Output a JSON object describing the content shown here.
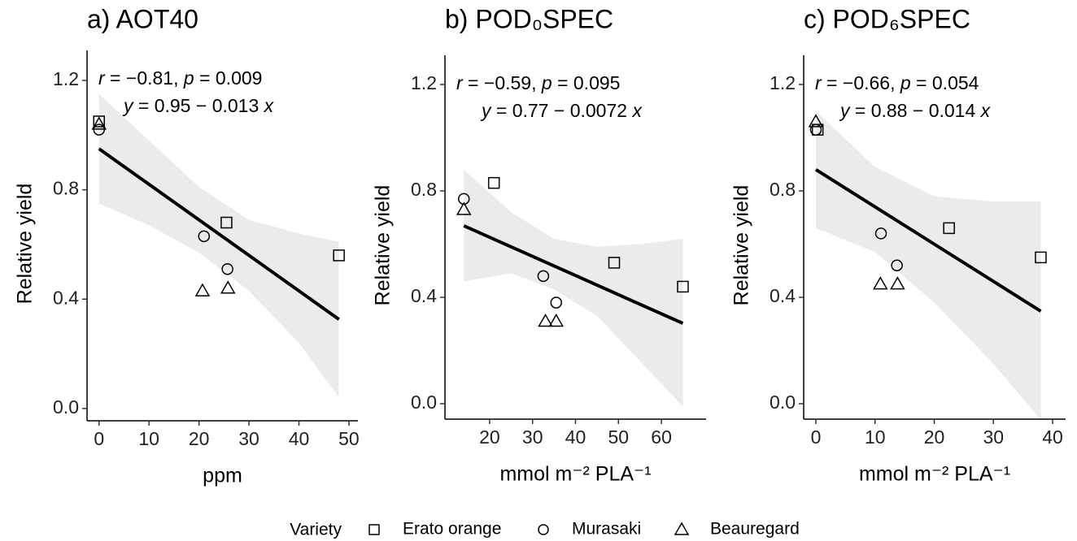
{
  "chart_data": [
    {
      "type": "scatter",
      "title": "a) AOT40",
      "xlabel": "ppm",
      "ylabel": "Relative yield",
      "annotation": [
        "r = −0.81, p = 0.009",
        "y = 0.95 − 0.013 x"
      ],
      "xlim": [
        -2.4,
        51.8
      ],
      "xticks": [
        0,
        10,
        20,
        30,
        40,
        50
      ],
      "ylim": [
        -0.045,
        1.31
      ],
      "yticks": [
        {
          "value": 0,
          "label": "0.0"
        },
        0.4,
        0.8,
        1.2
      ],
      "series": [
        {
          "name": "Erato orange",
          "marker": "square",
          "color": "#000000",
          "x": [
            0,
            25.5,
            48
          ],
          "y": [
            1.05,
            0.68,
            0.56
          ]
        },
        {
          "name": "Murasaki",
          "marker": "circle",
          "color": "#000000",
          "x": [
            0,
            21,
            25.7
          ],
          "y": [
            1.02,
            0.63,
            0.51
          ]
        },
        {
          "name": "Beauregard",
          "marker": "triangle",
          "color": "#000000",
          "x": [
            0,
            20.7,
            25.8
          ],
          "y": [
            1.04,
            0.43,
            0.44
          ]
        }
      ],
      "fit": {
        "x": [
          0,
          48
        ],
        "y": [
          0.95,
          0.326
        ],
        "color": "#000000"
      },
      "band": {
        "x": [
          0,
          10,
          20,
          30,
          40,
          48
        ],
        "upper": [
          1.15,
          0.98,
          0.81,
          0.69,
          0.64,
          0.61
        ],
        "lower": [
          0.75,
          0.67,
          0.57,
          0.43,
          0.24,
          0.04
        ],
        "color": "#ebebeb"
      }
    },
    {
      "type": "scatter",
      "title": "b) POD₀SPEC",
      "xlabel": "mmol  m⁻² PLA⁻¹",
      "ylabel": "Relative yield",
      "annotation": [
        "r = −0.59, p = 0.095",
        "y = 0.77 − 0.0072 x"
      ],
      "xlim": [
        9.6,
        70.4
      ],
      "xticks": [
        20,
        30,
        40,
        50,
        60
      ],
      "ylim": [
        -0.058,
        1.31
      ],
      "yticks": [
        {
          "value": 0,
          "label": "0.0"
        },
        0.4,
        0.8,
        1.2
      ],
      "series": [
        {
          "name": "Erato orange",
          "marker": "square",
          "color": "#000000",
          "x": [
            21,
            49,
            65
          ],
          "y": [
            0.83,
            0.53,
            0.44
          ]
        },
        {
          "name": "Murasaki",
          "marker": "circle",
          "color": "#000000",
          "x": [
            14,
            32.5,
            35.5
          ],
          "y": [
            0.77,
            0.48,
            0.38
          ]
        },
        {
          "name": "Beauregard",
          "marker": "triangle",
          "color": "#000000",
          "x": [
            14,
            33,
            35.5
          ],
          "y": [
            0.73,
            0.31,
            0.31
          ]
        }
      ],
      "fit": {
        "x": [
          14,
          65
        ],
        "y": [
          0.669,
          0.302
        ],
        "color": "#000000"
      },
      "band": {
        "x": [
          14,
          25,
          35,
          45,
          55,
          65
        ],
        "upper": [
          0.88,
          0.72,
          0.62,
          0.59,
          0.6,
          0.62
        ],
        "lower": [
          0.46,
          0.49,
          0.43,
          0.33,
          0.16,
          -0.01
        ],
        "color": "#ebebeb"
      }
    },
    {
      "type": "scatter",
      "title": "c) POD₆SPEC",
      "xlabel": "mmol  m⁻² PLA⁻¹",
      "ylabel": "Relative yield",
      "annotation": [
        "r = −0.66, p = 0.054",
        "y = 0.88 − 0.014 x"
      ],
      "xlim": [
        -2.06,
        42.2
      ],
      "xticks": [
        0,
        10,
        20,
        30,
        40
      ],
      "ylim": [
        -0.058,
        1.31
      ],
      "yticks": [
        {
          "value": 0,
          "label": "0.0"
        },
        0.4,
        0.8,
        1.2
      ],
      "series": [
        {
          "name": "Erato orange",
          "marker": "square",
          "color": "#000000",
          "x": [
            0.3,
            22.5,
            38
          ],
          "y": [
            1.03,
            0.66,
            0.55
          ]
        },
        {
          "name": "Murasaki",
          "marker": "circle",
          "color": "#000000",
          "x": [
            0,
            11,
            13.7
          ],
          "y": [
            1.03,
            0.64,
            0.52
          ]
        },
        {
          "name": "Beauregard",
          "marker": "triangle",
          "color": "#000000",
          "x": [
            0,
            10.9,
            13.8
          ],
          "y": [
            1.06,
            0.45,
            0.45
          ]
        }
      ],
      "fit": {
        "x": [
          0,
          38
        ],
        "y": [
          0.88,
          0.348
        ],
        "color": "#000000"
      },
      "band": {
        "x": [
          0,
          10,
          20,
          30,
          38
        ],
        "upper": [
          1.1,
          0.89,
          0.78,
          0.76,
          0.76
        ],
        "lower": [
          0.66,
          0.57,
          0.38,
          0.15,
          -0.06
        ],
        "color": "#ebebeb"
      }
    }
  ],
  "legend_title": "Variety"
}
